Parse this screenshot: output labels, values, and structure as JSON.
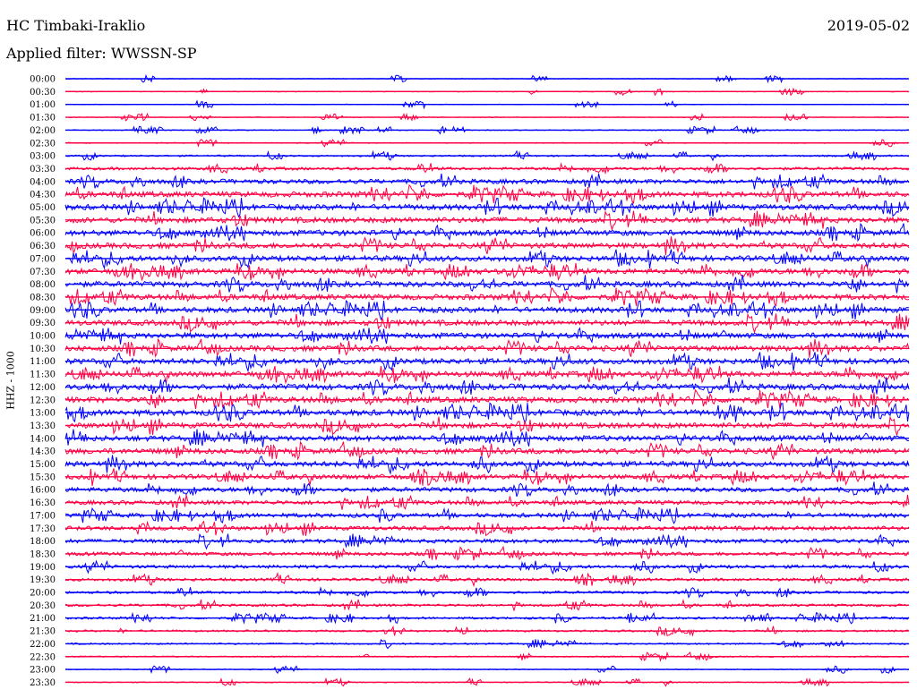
{
  "header": {
    "station": "HC Timbaki-Iraklio",
    "date": "2019-05-02",
    "filter": "Applied filter: WWSSN-SP"
  },
  "chart_data": {
    "type": "line",
    "title": "HC Timbaki-Iraklio",
    "ylabel": "HHZ - 1000",
    "row_labels": [
      "00:00",
      "00:30",
      "01:00",
      "01:30",
      "02:00",
      "02:30",
      "03:00",
      "03:30",
      "04:00",
      "04:30",
      "05:00",
      "05:30",
      "06:00",
      "06:30",
      "07:00",
      "07:30",
      "08:00",
      "08:30",
      "09:00",
      "09:30",
      "10:00",
      "10:30",
      "11:00",
      "11:30",
      "12:00",
      "12:30",
      "13:00",
      "13:30",
      "14:00",
      "14:30",
      "15:00",
      "15:30",
      "16:00",
      "16:30",
      "17:00",
      "17:30",
      "18:00",
      "18:30",
      "19:00",
      "19:30",
      "20:00",
      "20:30",
      "21:00",
      "21:30",
      "22:00",
      "22:30",
      "23:00",
      "23:30"
    ],
    "activity": [
      0.1,
      0.12,
      0.1,
      0.12,
      0.15,
      0.15,
      0.25,
      0.45,
      0.7,
      0.85,
      0.85,
      0.85,
      0.85,
      0.85,
      0.85,
      0.85,
      0.85,
      0.85,
      0.85,
      0.85,
      0.85,
      0.85,
      0.85,
      0.85,
      0.9,
      0.9,
      0.9,
      0.85,
      0.85,
      0.85,
      0.8,
      0.75,
      0.7,
      0.65,
      0.65,
      0.65,
      0.6,
      0.55,
      0.5,
      0.45,
      0.4,
      0.4,
      0.35,
      0.3,
      0.25,
      0.2,
      0.15,
      0.15
    ],
    "colors": [
      "#0000ff",
      "#ff0044"
    ]
  }
}
